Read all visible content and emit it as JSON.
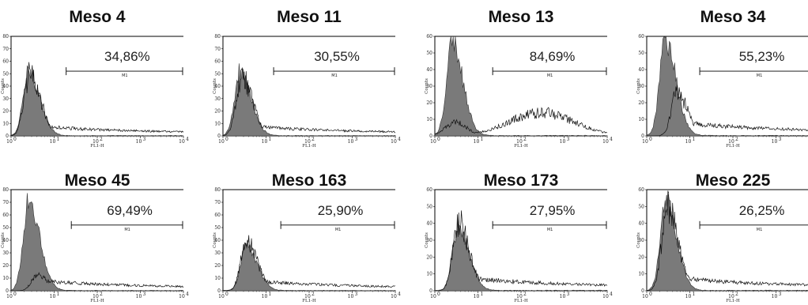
{
  "chart_data": [
    {
      "type": "area",
      "title": "Meso 4",
      "percent_label": "34,86%",
      "marker_label": "M1",
      "xlabel": "FL1-H",
      "ylabel": "Counts",
      "x_scale": "log",
      "xlim": [
        1,
        10000
      ],
      "ylim": [
        0,
        80
      ],
      "x_ticks": [
        "10",
        "10",
        "10",
        "10",
        "10"
      ],
      "x_exps": [
        "0",
        "1",
        "2",
        "3",
        "4"
      ],
      "y_ticks": [
        "0",
        "10",
        "20",
        "30",
        "40",
        "50",
        "60",
        "70",
        "80"
      ],
      "control_peak": 52,
      "control_mode": 2.6,
      "stained_peak": 48,
      "stained_mode": 2.7,
      "marker_range": [
        19,
        10000
      ],
      "series": [
        {
          "name": "control",
          "values": []
        },
        {
          "name": "stained",
          "values": []
        }
      ]
    },
    {
      "type": "area",
      "title": "Meso 11",
      "percent_label": "30,55%",
      "marker_label": "M1",
      "xlabel": "FL1-H",
      "ylabel": "Counts",
      "x_scale": "log",
      "xlim": [
        1,
        10000
      ],
      "ylim": [
        0,
        80
      ],
      "x_ticks": [
        "10",
        "10",
        "10",
        "10",
        "10"
      ],
      "x_exps": [
        "0",
        "1",
        "2",
        "3",
        "4"
      ],
      "y_ticks": [
        "0",
        "10",
        "20",
        "30",
        "40",
        "50",
        "60",
        "70",
        "80"
      ],
      "control_peak": 52,
      "control_mode": 2.5,
      "stained_peak": 46,
      "stained_mode": 2.7,
      "marker_range": [
        15,
        10000
      ],
      "series": [
        {
          "name": "control",
          "values": []
        },
        {
          "name": "stained",
          "values": []
        }
      ]
    },
    {
      "type": "area",
      "title": "Meso 13",
      "percent_label": "84,69%",
      "marker_label": "M1",
      "xlabel": "FL1-H",
      "ylabel": "Counts",
      "x_scale": "log",
      "xlim": [
        1,
        10000
      ],
      "ylim": [
        0,
        60
      ],
      "x_ticks": [
        "10",
        "10",
        "10",
        "10",
        "10"
      ],
      "x_exps": [
        "0",
        "1",
        "2",
        "3",
        "4"
      ],
      "y_ticks": [
        "0",
        "10",
        "20",
        "30",
        "40",
        "50",
        "60"
      ],
      "control_peak": 55,
      "control_mode": 2.5,
      "stained_peak": 14,
      "stained_mode": 300,
      "marker_range": [
        22,
        10000
      ],
      "series": [
        {
          "name": "control",
          "values": []
        },
        {
          "name": "stained",
          "values": []
        }
      ]
    },
    {
      "type": "area",
      "title": "Meso 34",
      "percent_label": "55,23%",
      "marker_label": "M1",
      "xlabel": "FL1-H",
      "ylabel": "Counts",
      "x_scale": "log",
      "xlim": [
        1,
        10000
      ],
      "ylim": [
        0,
        60
      ],
      "x_ticks": [
        "10",
        "10",
        "10",
        "10",
        "10"
      ],
      "x_exps": [
        "0",
        "1",
        "2",
        "3",
        "4"
      ],
      "y_ticks": [
        "0",
        "10",
        "20",
        "30",
        "40",
        "50",
        "60"
      ],
      "control_peak": 57,
      "control_mode": 2.7,
      "stained_peak": 25,
      "stained_mode": 5,
      "marker_range": [
        17,
        10000
      ],
      "series": [
        {
          "name": "control",
          "values": []
        },
        {
          "name": "stained",
          "values": []
        }
      ]
    },
    {
      "type": "area",
      "title": "Meso 45",
      "percent_label": "69,49%",
      "marker_label": "M1",
      "xlabel": "FL1-H",
      "ylabel": "Counts",
      "x_scale": "log",
      "xlim": [
        1,
        10000
      ],
      "ylim": [
        0,
        80
      ],
      "x_ticks": [
        "10",
        "10",
        "10",
        "10",
        "10"
      ],
      "x_exps": [
        "0",
        "1",
        "2",
        "3",
        "4"
      ],
      "y_ticks": [
        "0",
        "10",
        "20",
        "30",
        "40",
        "50",
        "60",
        "70",
        "80"
      ],
      "control_peak": 72,
      "control_mode": 2.6,
      "stained_peak": 12,
      "stained_mode": 4,
      "marker_range": [
        25,
        10000
      ],
      "series": [
        {
          "name": "control",
          "values": []
        },
        {
          "name": "stained",
          "values": []
        }
      ]
    },
    {
      "type": "area",
      "title": "Meso 163",
      "percent_label": "25,90%",
      "marker_label": "M1",
      "xlabel": "FL1-H",
      "ylabel": "Counts",
      "x_scale": "log",
      "xlim": [
        1,
        10000
      ],
      "ylim": [
        0,
        80
      ],
      "x_ticks": [
        "10",
        "10",
        "10",
        "10",
        "10"
      ],
      "x_exps": [
        "0",
        "1",
        "2",
        "3",
        "4"
      ],
      "y_ticks": [
        "0",
        "10",
        "20",
        "30",
        "40",
        "50",
        "60",
        "70",
        "80"
      ],
      "control_peak": 35,
      "control_mode": 3.5,
      "stained_peak": 38,
      "stained_mode": 3.5,
      "marker_range": [
        22,
        10000
      ],
      "series": [
        {
          "name": "control",
          "values": []
        },
        {
          "name": "stained",
          "values": []
        }
      ]
    },
    {
      "type": "area",
      "title": "Meso 173",
      "percent_label": "27,95%",
      "marker_label": "M1",
      "xlabel": "FL1-H",
      "ylabel": "Counts",
      "x_scale": "log",
      "xlim": [
        1,
        10000
      ],
      "ylim": [
        0,
        60
      ],
      "x_ticks": [
        "10",
        "10",
        "10",
        "10",
        "10"
      ],
      "x_exps": [
        "0",
        "1",
        "2",
        "3",
        "4"
      ],
      "y_ticks": [
        "0",
        "10",
        "20",
        "30",
        "40",
        "50",
        "60"
      ],
      "control_peak": 38,
      "control_mode": 3.5,
      "stained_peak": 40,
      "stained_mode": 3.5,
      "marker_range": [
        22,
        10000
      ],
      "series": [
        {
          "name": "control",
          "values": []
        },
        {
          "name": "stained",
          "values": []
        }
      ]
    },
    {
      "type": "area",
      "title": "Meso 225",
      "percent_label": "26,25%",
      "marker_label": "M1",
      "xlabel": "FL1-H",
      "ylabel": "Counts",
      "x_scale": "log",
      "xlim": [
        1,
        10000
      ],
      "ylim": [
        0,
        60
      ],
      "x_ticks": [
        "10",
        "10",
        "10",
        "10",
        "10"
      ],
      "x_exps": [
        "0",
        "1",
        "2",
        "3",
        "4"
      ],
      "y_ticks": [
        "0",
        "10",
        "20",
        "30",
        "40",
        "50",
        "60"
      ],
      "control_peak": 52,
      "control_mode": 2.8,
      "stained_peak": 48,
      "stained_mode": 3,
      "marker_range": [
        17,
        10000
      ],
      "series": [
        {
          "name": "control",
          "values": []
        },
        {
          "name": "stained",
          "values": []
        }
      ]
    }
  ]
}
